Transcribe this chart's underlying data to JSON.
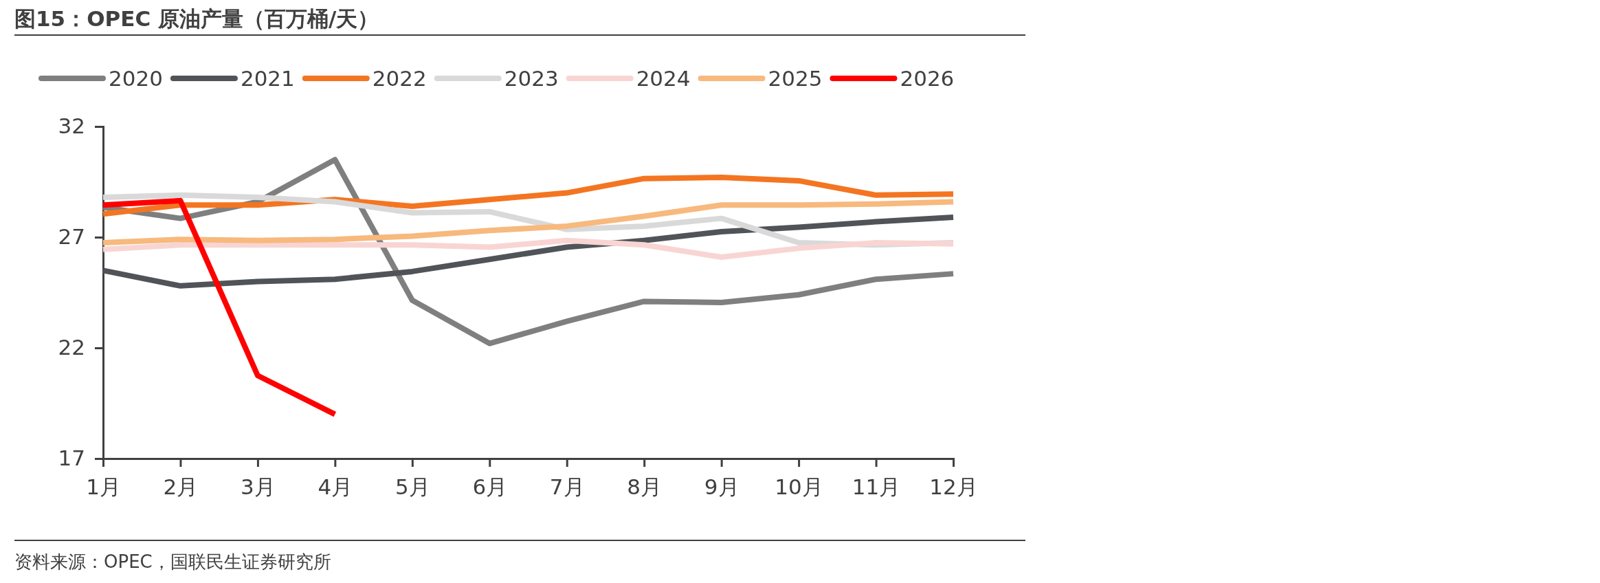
{
  "chart_data": {
    "type": "line",
    "title": "图15：OPEC 原油产量（百万桶/天）",
    "categories": [
      "1月",
      "2月",
      "3月",
      "4月",
      "5月",
      "6月",
      "7月",
      "8月",
      "9月",
      "10月",
      "11月",
      "12月"
    ],
    "series": [
      {
        "name": "2020",
        "color": "#7f7f7f",
        "values": [
          28.35,
          27.85,
          28.6,
          30.5,
          24.15,
          22.2,
          23.2,
          24.1,
          24.05,
          24.4,
          25.1,
          25.35
        ]
      },
      {
        "name": "2021",
        "color": "#505458",
        "values": [
          25.5,
          24.8,
          25.0,
          25.1,
          25.45,
          26.0,
          26.55,
          26.85,
          27.25,
          27.45,
          27.7,
          27.9
        ]
      },
      {
        "name": "2022",
        "color": "#f47521",
        "values": [
          28.05,
          28.45,
          28.45,
          28.7,
          28.4,
          28.7,
          29.0,
          29.65,
          29.7,
          29.55,
          28.9,
          28.95
        ]
      },
      {
        "name": "2023",
        "color": "#d9d9d9",
        "values": [
          28.8,
          28.9,
          28.8,
          28.6,
          28.1,
          28.15,
          27.35,
          27.5,
          27.85,
          26.75,
          26.65,
          26.75
        ]
      },
      {
        "name": "2024",
        "color": "#f8d5d3",
        "values": [
          26.45,
          26.65,
          26.65,
          26.65,
          26.65,
          26.55,
          26.85,
          26.65,
          26.1,
          26.5,
          26.75,
          26.7
        ]
      },
      {
        "name": "2025",
        "color": "#f7b97d",
        "values": [
          26.75,
          26.9,
          26.85,
          26.9,
          27.05,
          27.3,
          27.5,
          27.95,
          28.45,
          28.45,
          28.5,
          28.6
        ]
      },
      {
        "name": "2026",
        "color": "#ff0000",
        "values": [
          28.45,
          28.65,
          20.75,
          19.0,
          null,
          null,
          null,
          null,
          null,
          null,
          null,
          null
        ]
      }
    ],
    "ylim": [
      17,
      32
    ],
    "yticks": [
      17,
      22,
      27,
      32
    ],
    "grid": false,
    "legend": "top",
    "marker": "none",
    "line_style": "solid",
    "annotations": [
      "资料来源：OPEC，国联民生证券研究所"
    ]
  }
}
